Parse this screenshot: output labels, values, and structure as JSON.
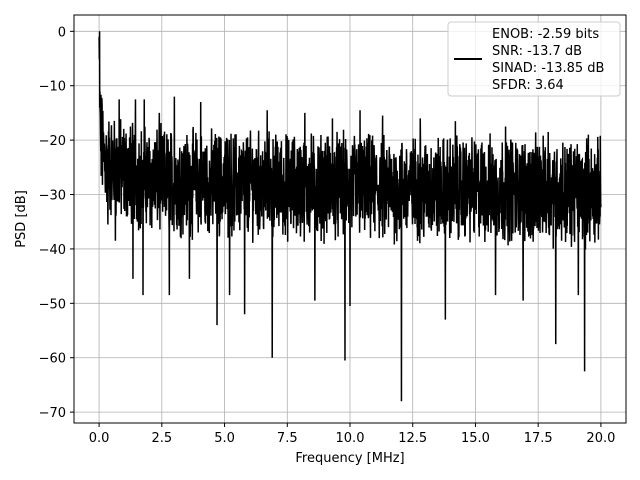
{
  "chart_data": {
    "type": "line",
    "xlabel": "Frequency [MHz]",
    "ylabel": "PSD [dB]",
    "xlim": [
      -1,
      21
    ],
    "ylim": [
      -72,
      3
    ],
    "xticks": [
      0.0,
      2.5,
      5.0,
      7.5,
      10.0,
      12.5,
      15.0,
      17.5,
      20.0
    ],
    "xtick_labels": [
      "0.0",
      "2.5",
      "5.0",
      "7.5",
      "10.0",
      "12.5",
      "15.0",
      "17.5",
      "20.0"
    ],
    "yticks": [
      0,
      -10,
      -20,
      -30,
      -40,
      -50,
      -60,
      -70
    ],
    "ytick_labels": [
      "0",
      "−10",
      "−20",
      "−30",
      "−40",
      "−50",
      "−60",
      "−70"
    ],
    "grid": true,
    "legend_position": "top-right",
    "line_color": "#000000",
    "legend": {
      "lines": [
        "ENOB: -2.59 bits",
        "SNR: -13.7 dB",
        "SINAD: -13.85 dB",
        "SFDR: 3.64"
      ]
    },
    "series": [
      {
        "x": [
          0.0,
          0.01,
          0.02,
          0.03,
          0.05,
          0.08,
          0.1,
          0.15,
          0.2,
          0.3,
          0.5,
          0.8,
          1.0,
          1.2,
          1.5,
          1.8,
          2.0,
          2.5,
          3.0,
          4.0,
          5.0,
          6.0,
          7.0,
          8.0,
          9.0,
          10.0,
          11.0,
          12.0,
          13.0,
          14.0,
          15.0,
          16.0,
          17.0,
          18.0,
          19.0,
          19.5,
          20.0
        ],
        "y": [
          -1,
          -6,
          -12,
          -16,
          -18,
          -20,
          -21,
          -22,
          -23,
          -24,
          -25,
          -25.5,
          -26,
          -26,
          -26.5,
          -27,
          -27,
          -27.5,
          -27.5,
          -28,
          -28,
          -28,
          -28.5,
          -28.5,
          -28.5,
          -28.5,
          -29,
          -29,
          -29,
          -29,
          -29,
          -29,
          -29,
          -29.5,
          -29.5,
          -29.5,
          -29.5
        ]
      }
    ],
    "spikes": [
      {
        "x": 0.35,
        "y": -35.5
      },
      {
        "x": 0.65,
        "y": -38.5
      },
      {
        "x": 1.35,
        "y": -45.5
      },
      {
        "x": 1.75,
        "y": -48.5
      },
      {
        "x": 2.8,
        "y": -48.5
      },
      {
        "x": 3.6,
        "y": -45.5
      },
      {
        "x": 4.7,
        "y": -54
      },
      {
        "x": 5.2,
        "y": -48.5
      },
      {
        "x": 5.8,
        "y": -52
      },
      {
        "x": 6.9,
        "y": -60
      },
      {
        "x": 8.6,
        "y": -49.5
      },
      {
        "x": 9.8,
        "y": -60.5
      },
      {
        "x": 10.0,
        "y": -50.5
      },
      {
        "x": 12.05,
        "y": -68
      },
      {
        "x": 13.8,
        "y": -53
      },
      {
        "x": 15.8,
        "y": -48.5
      },
      {
        "x": 16.9,
        "y": -49.5
      },
      {
        "x": 18.2,
        "y": -57.5
      },
      {
        "x": 19.35,
        "y": -62.5
      },
      {
        "x": 19.1,
        "y": -48.5
      }
    ],
    "peaks": [
      {
        "x": 0.02,
        "y": 0
      },
      {
        "x": 0.12,
        "y": -13.5
      },
      {
        "x": 0.8,
        "y": -12.5
      },
      {
        "x": 1.45,
        "y": -12.5
      },
      {
        "x": 1.8,
        "y": -12.5
      },
      {
        "x": 2.4,
        "y": -15
      },
      {
        "x": 3.0,
        "y": -12
      },
      {
        "x": 4.05,
        "y": -13
      },
      {
        "x": 5.8,
        "y": -15
      },
      {
        "x": 6.7,
        "y": -14.5
      },
      {
        "x": 8.2,
        "y": -15
      },
      {
        "x": 9.3,
        "y": -16
      },
      {
        "x": 10.4,
        "y": -14.5
      },
      {
        "x": 11.3,
        "y": -15.5
      },
      {
        "x": 12.8,
        "y": -16
      },
      {
        "x": 14.2,
        "y": -16.5
      },
      {
        "x": 16.2,
        "y": -17.5
      },
      {
        "x": 17.9,
        "y": -18.5
      },
      {
        "x": 19.5,
        "y": -19
      }
    ]
  }
}
